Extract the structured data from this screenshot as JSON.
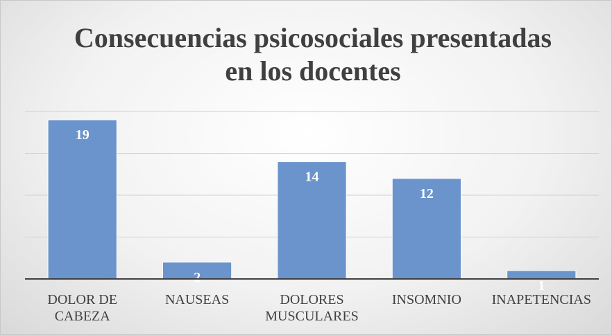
{
  "chart_data": {
    "type": "bar",
    "title": "Consecuencias psicosociales presentadas en los docentes",
    "categories": [
      "DOLOR DE CABEZA",
      "NAUSEAS",
      "DOLORES MUSCULARES",
      "INSOMNIO",
      "INAPETENCIAS"
    ],
    "values": [
      19,
      2,
      14,
      12,
      1
    ],
    "color": "#6a94cb",
    "ylim": [
      0,
      20
    ],
    "yticks": [
      0,
      5,
      10,
      15,
      20
    ],
    "grid": true
  }
}
